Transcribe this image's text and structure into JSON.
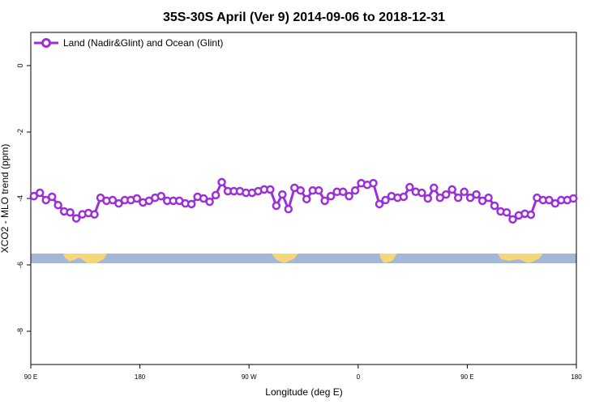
{
  "chart_data": {
    "type": "line",
    "title": "35S-30S April (Ver 9)   2014-09-06 to 2018-12-31",
    "x_label": "Longitude (deg E)",
    "y_label": "XCO2 - MLO trend (ppm)",
    "xlim": [
      90,
      540
    ],
    "ylim": [
      -9,
      1
    ],
    "xticks": [
      {
        "value": 90,
        "label": "90 E"
      },
      180,
      {
        "value": 270,
        "label": "90 W"
      },
      {
        "value": 360,
        "label": "0"
      },
      {
        "value": 450,
        "label": "90 E"
      },
      {
        "value": 540,
        "label": "180"
      }
    ],
    "yticks": [
      0,
      -2,
      -4,
      -6,
      -8
    ],
    "legend": "top-left",
    "x": [
      92.5,
      97.5,
      102.5,
      107.5,
      112.5,
      117.5,
      122.5,
      127.5,
      132.5,
      137.5,
      142.5,
      147.5,
      152.5,
      157.5,
      162.5,
      167.5,
      172.5,
      177.5,
      182.5,
      187.5,
      192.5,
      197.5,
      202.5,
      207.5,
      212.5,
      217.5,
      222.5,
      227.5,
      232.5,
      237.5,
      242.5,
      247.5,
      252.5,
      257.5,
      262.5,
      267.5,
      272.5,
      277.5,
      282.5,
      287.5,
      292.5,
      297.5,
      302.5,
      307.5,
      312.5,
      317.5,
      322.5,
      327.5,
      332.5,
      337.5,
      342.5,
      347.5,
      352.5,
      357.5,
      362.5,
      367.5,
      372.5,
      377.5,
      382.5,
      387.5,
      392.5,
      397.5,
      402.5,
      407.5,
      412.5,
      417.5,
      422.5,
      427.5,
      432.5,
      437.5,
      442.5,
      447.5,
      452.5,
      457.5,
      462.5,
      467.5,
      472.5,
      477.5,
      482.5,
      487.5,
      492.5,
      497.5,
      502.5,
      507.5,
      512.5,
      517.5,
      522.5,
      527.5,
      532.5,
      537.5
    ],
    "series": [
      {
        "name": "Land (Nadir&Glint) and Ocean (Glint)",
        "color": "#9b30d9",
        "values": [
          -3.93,
          -3.83,
          -4.05,
          -3.95,
          -4.2,
          -4.39,
          -4.42,
          -4.6,
          -4.48,
          -4.44,
          -4.48,
          -3.98,
          -4.07,
          -4.05,
          -4.15,
          -4.05,
          -4.05,
          -4.0,
          -4.12,
          -4.07,
          -3.98,
          -3.93,
          -4.07,
          -4.07,
          -4.07,
          -4.15,
          -4.17,
          -3.95,
          -4.0,
          -4.1,
          -3.9,
          -3.51,
          -3.78,
          -3.78,
          -3.78,
          -3.83,
          -3.83,
          -3.78,
          -3.73,
          -3.73,
          -4.22,
          -3.88,
          -4.32,
          -3.68,
          -3.76,
          -4.02,
          -3.76,
          -3.76,
          -4.07,
          -3.93,
          -3.8,
          -3.8,
          -3.93,
          -3.76,
          -3.54,
          -3.59,
          -3.54,
          -4.17,
          -4.05,
          -3.93,
          -3.98,
          -3.95,
          -3.66,
          -3.8,
          -3.83,
          -4.0,
          -3.68,
          -3.98,
          -3.88,
          -3.73,
          -3.98,
          -3.8,
          -3.98,
          -3.88,
          -4.07,
          -3.98,
          -4.22,
          -4.39,
          -4.42,
          -4.63,
          -4.51,
          -4.46,
          -4.49,
          -3.98,
          -4.05,
          -4.05,
          -4.15,
          -4.05,
          -4.05,
          -4.0
        ]
      }
    ]
  }
}
